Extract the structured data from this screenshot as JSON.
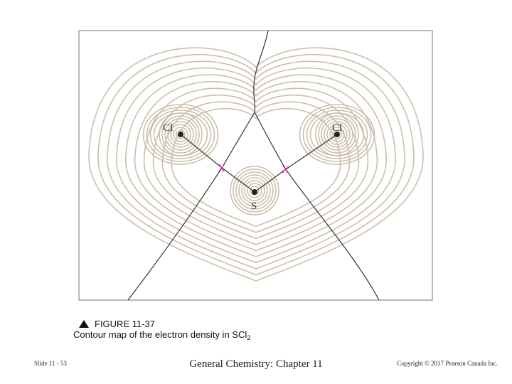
{
  "figure": {
    "atoms": [
      {
        "label": "Cl"
      },
      {
        "label": "Cl"
      },
      {
        "label": "S"
      }
    ],
    "critical_points": [
      {
        "label": "X"
      },
      {
        "label": "X"
      }
    ]
  },
  "caption": {
    "number": "FIGURE 11-37",
    "text": "Contour map of the electron density in SCl",
    "subscript": "2"
  },
  "footer": {
    "slide": "Slide 11 - 53",
    "course": "General Chemistry: Chapter 11",
    "copyright": "Copyright © 2017 Pearson Canada Inc."
  }
}
